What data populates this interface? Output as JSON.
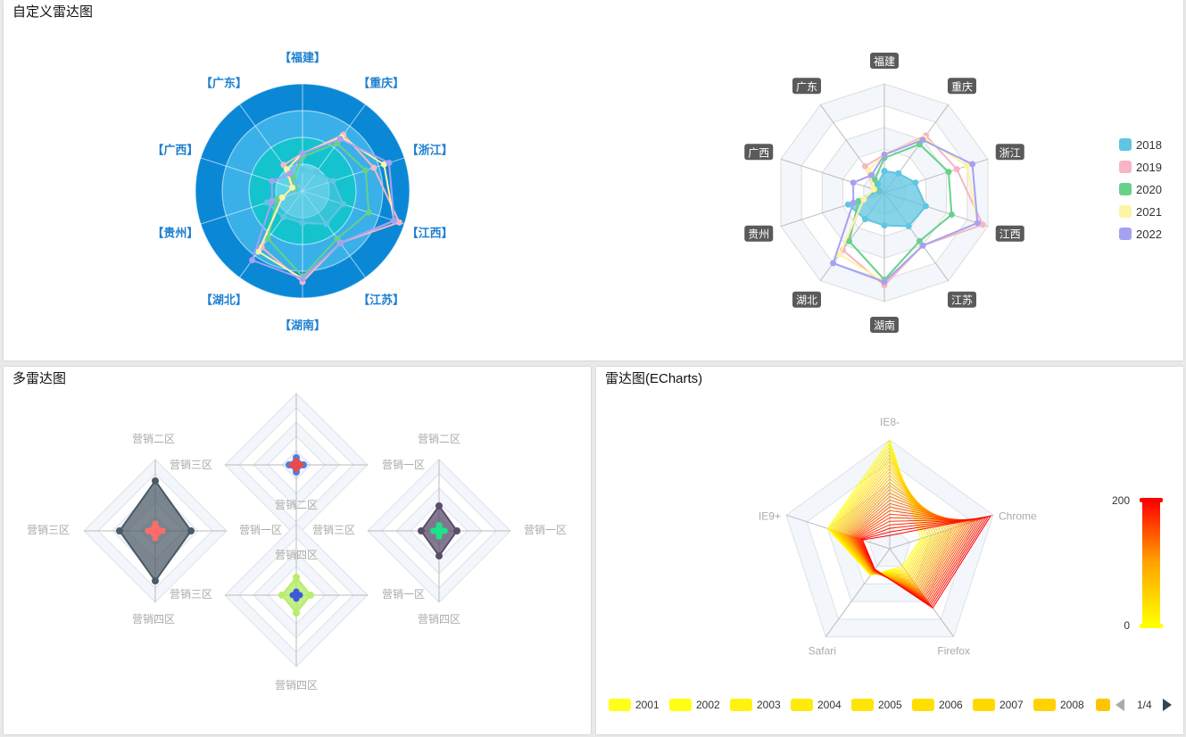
{
  "panels": [
    {
      "title": "自定义雷达图"
    },
    {
      "title": "多雷达图"
    },
    {
      "title": "雷达图(ECharts)"
    }
  ],
  "chart_data": [
    {
      "type": "radar",
      "panel": "自定义雷达图 (left)",
      "indicators": [
        "福建",
        "重庆",
        "浙江",
        "江西",
        "江苏",
        "湖南",
        "湖北",
        "贵州",
        "广西",
        "广东"
      ],
      "label_format": "【{name}】",
      "max": 100,
      "ring_colors": [
        "#0a88d6",
        "#39b0e8",
        "#21c3d8",
        "#2fc8d8"
      ],
      "series": [
        {
          "name": "2018",
          "color": "#5fc5e2",
          "values": [
            20,
            22,
            30,
            40,
            38,
            30,
            30,
            35,
            5,
            10
          ]
        },
        {
          "name": "2019",
          "color": "#f7b5c6",
          "values": [
            35,
            65,
            70,
            95,
            60,
            85,
            65,
            20,
            10,
            30
          ]
        },
        {
          "name": "2020",
          "color": "#67d18a",
          "values": [
            32,
            55,
            62,
            65,
            55,
            80,
            55,
            25,
            8,
            15
          ]
        },
        {
          "name": "2021",
          "color": "#fdf4a5",
          "values": [
            35,
            62,
            80,
            90,
            60,
            82,
            70,
            20,
            10,
            25
          ]
        },
        {
          "name": "2022",
          "color": "#a6a1f2",
          "values": [
            35,
            60,
            85,
            90,
            60,
            82,
            80,
            30,
            30,
            20
          ]
        }
      ]
    },
    {
      "type": "radar",
      "panel": "自定义雷达图 (right)",
      "indicators": [
        "福建",
        "重庆",
        "浙江",
        "江西",
        "江苏",
        "湖南",
        "湖北",
        "贵州",
        "广西",
        "广东"
      ],
      "max": 100,
      "legend": {
        "position": "right",
        "items": [
          "2018",
          "2019",
          "2020",
          "2021",
          "2022"
        ]
      },
      "series": [
        {
          "name": "2018",
          "color": "#5fc5e2",
          "values": [
            20,
            22,
            30,
            40,
            38,
            30,
            30,
            35,
            5,
            10
          ]
        },
        {
          "name": "2019",
          "color": "#f7b5c6",
          "values": [
            35,
            65,
            70,
            95,
            60,
            85,
            65,
            20,
            10,
            30
          ]
        },
        {
          "name": "2020",
          "color": "#67d18a",
          "values": [
            32,
            55,
            62,
            65,
            55,
            80,
            55,
            25,
            8,
            15
          ]
        },
        {
          "name": "2021",
          "color": "#fdf4a5",
          "values": [
            35,
            62,
            80,
            90,
            60,
            82,
            70,
            20,
            10,
            25
          ]
        },
        {
          "name": "2022",
          "color": "#a6a1f2",
          "values": [
            35,
            60,
            85,
            90,
            60,
            82,
            80,
            30,
            30,
            20
          ]
        }
      ]
    },
    {
      "type": "radar",
      "panel": "多雷达图",
      "radars": [
        {
          "labels": [
            "营销二区",
            "营销一区",
            "营销四区",
            "营销三区"
          ],
          "polygon_color": "#4a5a66",
          "fill": "rgba(70,86,97,0.7)",
          "polygon": [
            70,
            50,
            70,
            50
          ],
          "dot_color": "#ff6b6b",
          "dot": [
            10,
            10,
            10,
            10
          ]
        },
        {
          "labels": [
            "",
            "",
            "营销二区",
            ""
          ],
          "polygon_color": "#4c7ee8",
          "fill": "rgba(76,126,232,0.8)",
          "polygon": [
            10,
            10,
            10,
            10
          ],
          "dot_color": "#e84b4b",
          "dot": [
            6,
            6,
            6,
            6
          ]
        },
        {
          "labels": [
            "营销二区",
            "营销一区",
            "营销四区",
            "营销三区"
          ],
          "polygon_color": "#5a4e6b",
          "fill": "rgba(90,78,107,0.75)",
          "polygon": [
            35,
            25,
            35,
            25
          ],
          "dot_color": "#20e08a",
          "dot": [
            8,
            8,
            8,
            8
          ]
        },
        {
          "labels": [
            "营销四区",
            "营销三区",
            "营销四区",
            "营销一区"
          ],
          "polygon_color": "#b8ee6a",
          "fill": "rgba(184,238,106,0.8)",
          "polygon": [
            25,
            20,
            25,
            20
          ],
          "dot_color": "#3d5bd9",
          "dot": [
            5,
            5,
            5,
            5
          ]
        }
      ],
      "extra_labels": [
        "营销三区",
        "营销三区",
        "营销一区",
        "营销二区",
        "营销三区",
        "营销一区",
        "营销一区"
      ]
    },
    {
      "type": "radar",
      "panel": "雷达图(ECharts)",
      "indicators": [
        "IE8-",
        "Chrome",
        "Firefox",
        "Safari",
        "IE9+"
      ],
      "max": 200,
      "visual_map": {
        "min": 0,
        "max": 200,
        "colors": [
          "#ffff00",
          "#ffa500",
          "#ff0000"
        ]
      },
      "legend": {
        "items": [
          "2001",
          "2002",
          "2003",
          "2004",
          "2005",
          "2006",
          "2007",
          "2008"
        ],
        "page": "1/4"
      },
      "series_count": 28
    }
  ]
}
